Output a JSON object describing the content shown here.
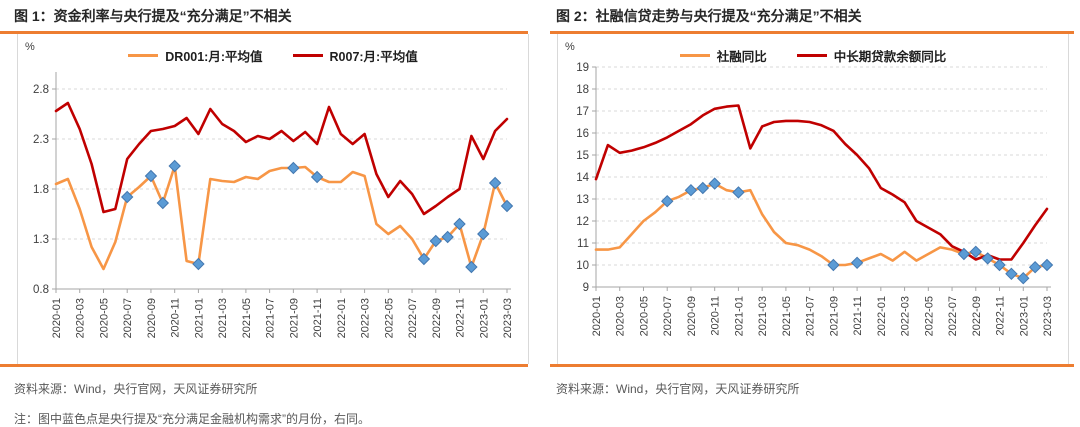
{
  "note": "注：图中蓝色点是央行提及“充分满足金融机构需求”的月份，右同。",
  "figures": [
    {
      "source": "资料来源：Wind，央行官网，天风证券研究所"
    },
    {
      "source": "资料来源：Wind，央行官网，天风证券研究所"
    }
  ],
  "colors": {
    "accent_rule_orange": "#ED7D31",
    "line_orange": "#F79646",
    "line_red": "#C00000",
    "marker_blue_fill": "#5B9BD5",
    "marker_blue_stroke": "#4478B0",
    "gridline": "#d9d9d9",
    "axis": "#a6a6a6",
    "tick_label": "#404040",
    "source_text": "#595959",
    "title_text": "#262626"
  },
  "chart_data": [
    {
      "type": "line",
      "title": "图 1：资金利率与央行提及“充分满足”不相关",
      "unit": "%",
      "ylim": [
        0.8,
        2.8
      ],
      "ytick_step": 0.5,
      "ydecimals": 1,
      "grid": "dashed-horizontal",
      "legend_position": "top",
      "x_label_rotation": -90,
      "xtick_every": 2,
      "x": [
        "2020-01",
        "2020-02",
        "2020-03",
        "2020-04",
        "2020-05",
        "2020-06",
        "2020-07",
        "2020-08",
        "2020-09",
        "2020-10",
        "2020-11",
        "2020-12",
        "2021-01",
        "2021-02",
        "2021-03",
        "2021-04",
        "2021-05",
        "2021-06",
        "2021-07",
        "2021-08",
        "2021-09",
        "2021-10",
        "2021-11",
        "2021-12",
        "2022-01",
        "2022-02",
        "2022-03",
        "2022-04",
        "2022-05",
        "2022-06",
        "2022-07",
        "2022-08",
        "2022-09",
        "2022-10",
        "2022-11",
        "2022-12",
        "2023-01",
        "2023-02",
        "2023-03"
      ],
      "series": [
        {
          "name": "DR001:月:平均值",
          "color": "#F79646",
          "values": [
            1.85,
            1.9,
            1.6,
            1.22,
            1.0,
            1.27,
            1.72,
            1.82,
            1.93,
            1.66,
            2.03,
            1.08,
            1.05,
            1.9,
            1.88,
            1.87,
            1.92,
            1.9,
            1.98,
            2.01,
            2.01,
            2.02,
            1.92,
            1.87,
            1.87,
            1.97,
            1.93,
            1.45,
            1.35,
            1.43,
            1.3,
            1.1,
            1.28,
            1.32,
            1.45,
            1.02,
            1.35,
            1.86,
            1.63
          ]
        },
        {
          "name": "R007:月:平均值",
          "color": "#C00000",
          "values": [
            2.58,
            2.66,
            2.4,
            2.05,
            1.57,
            1.6,
            2.1,
            2.25,
            2.38,
            2.4,
            2.43,
            2.51,
            2.35,
            2.6,
            2.45,
            2.38,
            2.27,
            2.33,
            2.3,
            2.38,
            2.28,
            2.37,
            2.25,
            2.62,
            2.35,
            2.25,
            2.35,
            1.95,
            1.72,
            1.88,
            1.75,
            1.55,
            1.63,
            1.72,
            1.8,
            2.33,
            2.1,
            2.38,
            2.5
          ]
        }
      ],
      "marker_series": 0,
      "marker_shape": "diamond",
      "marker_color": "#5B9BD5",
      "marker_months": [
        "2020-07",
        "2020-09",
        "2020-10",
        "2020-11",
        "2021-01",
        "2021-09",
        "2021-11",
        "2022-08",
        "2022-09",
        "2022-10",
        "2022-11",
        "2022-12",
        "2023-01",
        "2023-02",
        "2023-03"
      ]
    },
    {
      "type": "line",
      "title": "图 2：社融信贷走势与央行提及“充分满足”不相关",
      "unit": "%",
      "ylim": [
        9,
        19
      ],
      "ytick_step": 1,
      "ydecimals": 0,
      "grid": "dashed-horizontal",
      "legend_position": "top",
      "x_label_rotation": -90,
      "xtick_every": 2,
      "x": [
        "2020-01",
        "2020-02",
        "2020-03",
        "2020-04",
        "2020-05",
        "2020-06",
        "2020-07",
        "2020-08",
        "2020-09",
        "2020-10",
        "2020-11",
        "2020-12",
        "2021-01",
        "2021-02",
        "2021-03",
        "2021-04",
        "2021-05",
        "2021-06",
        "2021-07",
        "2021-08",
        "2021-09",
        "2021-10",
        "2021-11",
        "2021-12",
        "2022-01",
        "2022-02",
        "2022-03",
        "2022-04",
        "2022-05",
        "2022-06",
        "2022-07",
        "2022-08",
        "2022-09",
        "2022-10",
        "2022-11",
        "2022-12",
        "2023-01",
        "2023-02",
        "2023-03"
      ],
      "series": [
        {
          "name": "社融同比",
          "color": "#F79646",
          "values": [
            10.7,
            10.7,
            10.8,
            11.4,
            12.0,
            12.4,
            12.9,
            13.1,
            13.4,
            13.5,
            13.7,
            13.4,
            13.3,
            13.4,
            12.3,
            11.5,
            11.0,
            10.9,
            10.7,
            10.4,
            10.0,
            10.0,
            10.1,
            10.3,
            10.5,
            10.2,
            10.6,
            10.2,
            10.5,
            10.8,
            10.7,
            10.5,
            10.6,
            10.3,
            10.0,
            9.6,
            9.4,
            9.9,
            10.0
          ]
        },
        {
          "name": "中长期贷款余额同比",
          "color": "#C00000",
          "values": [
            13.9,
            15.45,
            15.1,
            15.2,
            15.35,
            15.55,
            15.8,
            16.1,
            16.4,
            16.8,
            17.1,
            17.2,
            17.25,
            15.3,
            16.3,
            16.5,
            16.55,
            16.55,
            16.5,
            16.35,
            16.1,
            15.5,
            15.0,
            14.4,
            13.5,
            13.2,
            12.85,
            12.0,
            11.7,
            11.4,
            10.85,
            10.6,
            10.25,
            10.45,
            10.25,
            10.25,
            11.0,
            11.8,
            12.55
          ]
        }
      ],
      "marker_series": 0,
      "marker_shape": "diamond",
      "marker_color": "#5B9BD5",
      "marker_months": [
        "2020-07",
        "2020-09",
        "2020-10",
        "2020-11",
        "2021-01",
        "2021-09",
        "2021-11",
        "2022-08",
        "2022-09",
        "2022-10",
        "2022-11",
        "2022-12",
        "2023-01",
        "2023-02",
        "2023-03"
      ]
    }
  ]
}
